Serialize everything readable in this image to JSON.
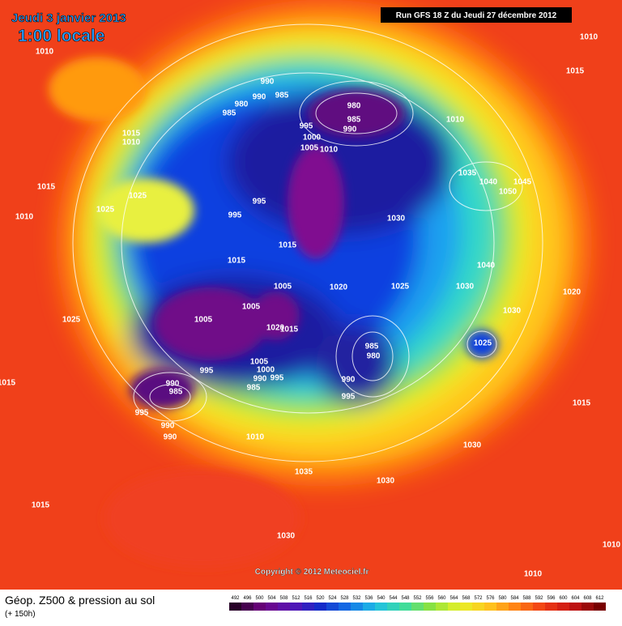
{
  "header": {
    "date": "Jeudi 3 janvier 2013",
    "time": "1:00 locale",
    "run": "Run GFS 18 Z du Jeudi 27 décembre 2012"
  },
  "copyright": "Copyright © 2012 Meteociel.fr",
  "footer": {
    "title": "Géop. Z500 & pression au sol",
    "subtitle": "(+ 150h)"
  },
  "legend": [
    492,
    496,
    500,
    504,
    508,
    512,
    516,
    520,
    524,
    528,
    532,
    536,
    540,
    544,
    548,
    552,
    556,
    560,
    564,
    568,
    572,
    576,
    580,
    584,
    588,
    592,
    596,
    600,
    604,
    608,
    612
  ],
  "isobar_labels": [
    "1010",
    "1010",
    "1015",
    "990",
    "990",
    "985",
    "980",
    "985",
    "980",
    "985",
    "990",
    "1010",
    "995",
    "1000",
    "1005",
    "1010",
    "1015",
    "1010",
    "1035",
    "1040",
    "1045",
    "1050",
    "1015",
    "1025",
    "1025",
    "1010",
    "995",
    "995",
    "1030",
    "1015",
    "1015",
    "1040",
    "1005",
    "1020",
    "1025",
    "1030",
    "1020",
    "1005",
    "1005",
    "1025",
    "1030",
    "1020",
    "1015",
    "985",
    "980",
    "1025",
    "1005",
    "995",
    "1000",
    "990",
    "995",
    "985",
    "990",
    "985",
    "990",
    "995",
    "1015",
    "995",
    "990",
    "990",
    "1010",
    "1015",
    "1030",
    "1035",
    "1030",
    "1015",
    "1030",
    "1010",
    "1010"
  ]
}
